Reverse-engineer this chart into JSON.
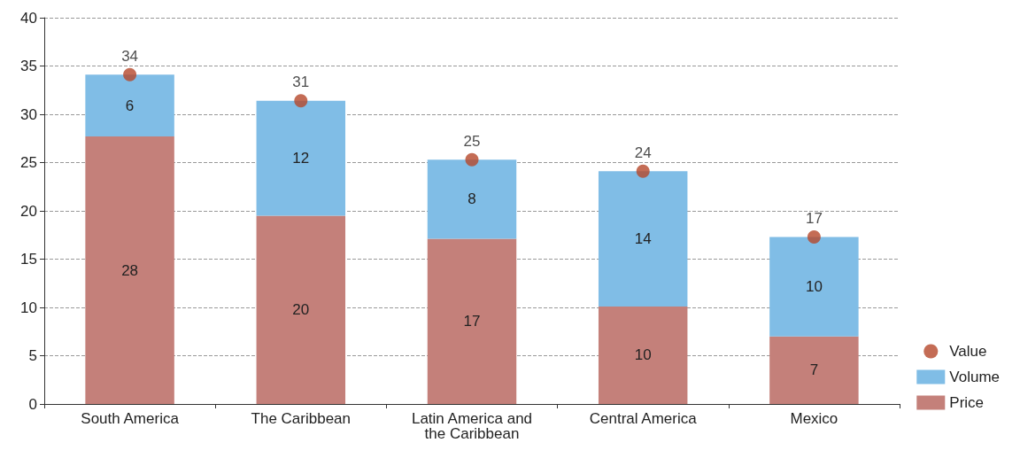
{
  "chart_data": {
    "type": "bar",
    "stacked": true,
    "categories": [
      "South America",
      "The Caribbean",
      "Latin America and the Caribbean",
      "Central America",
      "Mexico"
    ],
    "series": [
      {
        "name": "Price",
        "color": "#c4807a",
        "values": [
          27.7,
          19.5,
          17.1,
          10.1,
          7.0
        ],
        "value_labels": [
          "28",
          "20",
          "17",
          "10",
          "7"
        ]
      },
      {
        "name": "Volume",
        "type": "bar",
        "color": "#80bde6",
        "values": [
          6.4,
          11.9,
          8.2,
          14.0,
          10.3
        ],
        "value_labels": [
          "6",
          "12",
          "8",
          "14",
          "10"
        ]
      },
      {
        "name": "Value",
        "type": "scatter",
        "color": "#b5472a",
        "x": [
          "South America",
          "The Caribbean",
          "Latin America and the Caribbean",
          "Central America",
          "Mexico"
        ],
        "values": [
          34.1,
          31.4,
          25.3,
          24.1,
          17.3
        ],
        "value_labels": [
          "34",
          "31",
          "25",
          "24",
          "17"
        ]
      }
    ],
    "ylim": [
      0,
      40
    ],
    "yticks": [
      0,
      5,
      10,
      15,
      20,
      25,
      30,
      35,
      40
    ],
    "grid": "y",
    "legend": "bottom right",
    "marker": "circle"
  }
}
